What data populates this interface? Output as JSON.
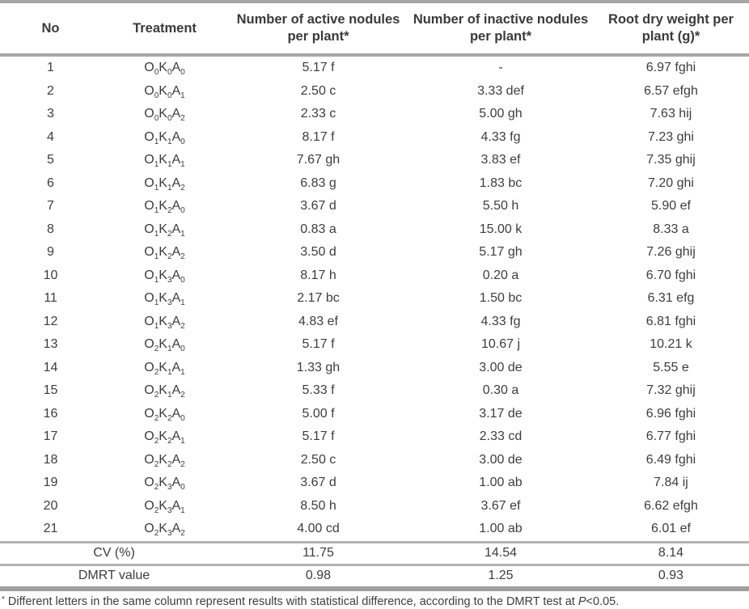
{
  "table": {
    "headers": [
      "No",
      "Treatment",
      "Number of active nodules\nper plant*",
      "Number of inactive nodules\nper plant*",
      "Root dry weight per\nplant (g)*"
    ],
    "rows": [
      {
        "no": "1",
        "treatment": "O0K0A0",
        "active": "5.17 f",
        "inactive": "-",
        "root": "6.97 fghi"
      },
      {
        "no": "2",
        "treatment": "O0K0A1",
        "active": "2.50 c",
        "inactive": "3.33 def",
        "root": "6.57 efgh"
      },
      {
        "no": "3",
        "treatment": "O0K0A2",
        "active": "2.33 c",
        "inactive": "5.00 gh",
        "root": "7.63 hij"
      },
      {
        "no": "4",
        "treatment": "O1K1A0",
        "active": "8.17 f",
        "inactive": "4.33 fg",
        "root": "7.23 ghi"
      },
      {
        "no": "5",
        "treatment": "O1K1A1",
        "active": "7.67 gh",
        "inactive": "3.83 ef",
        "root": "7.35 ghij"
      },
      {
        "no": "6",
        "treatment": "O1K1A2",
        "active": "6.83 g",
        "inactive": "1.83 bc",
        "root": "7.20 ghi"
      },
      {
        "no": "7",
        "treatment": "O1K2A0",
        "active": "3.67 d",
        "inactive": "5.50 h",
        "root": "5.90 ef"
      },
      {
        "no": "8",
        "treatment": "O1K2A1",
        "active": "0.83 a",
        "inactive": "15.00 k",
        "root": "8.33 a"
      },
      {
        "no": "9",
        "treatment": "O1K2A2",
        "active": "3.50 d",
        "inactive": "5.17 gh",
        "root": "7.26 ghij"
      },
      {
        "no": "10",
        "treatment": "O1K3A0",
        "active": "8.17 h",
        "inactive": "0.20 a",
        "root": "6.70 fghi"
      },
      {
        "no": "11",
        "treatment": "O1K3A1",
        "active": "2.17 bc",
        "inactive": "1.50 bc",
        "root": "6.31 efg"
      },
      {
        "no": "12",
        "treatment": "O1K3A2",
        "active": "4.83 ef",
        "inactive": "4.33 fg",
        "root": "6.81 fghi"
      },
      {
        "no": "13",
        "treatment": "O2K1A0",
        "active": "5.17 f",
        "inactive": "10.67 j",
        "root": "10.21 k"
      },
      {
        "no": "14",
        "treatment": "O2K1A1",
        "active": "1.33 gh",
        "inactive": "3.00 de",
        "root": "5.55 e"
      },
      {
        "no": "15",
        "treatment": "O2K1A2",
        "active": "5.33 f",
        "inactive": "0.30 a",
        "root": "7.32 ghij"
      },
      {
        "no": "16",
        "treatment": "O2K2A0",
        "active": "5.00 f",
        "inactive": "3.17 de",
        "root": "6.96 fghi"
      },
      {
        "no": "17",
        "treatment": "O2K2A1",
        "active": "5.17 f",
        "inactive": "2.33 cd",
        "root": "6.77 fghi"
      },
      {
        "no": "18",
        "treatment": "O2K2A2",
        "active": "2.50 c",
        "inactive": "3.00 de",
        "root": "6.49 fghi"
      },
      {
        "no": "19",
        "treatment": "O2K3A0",
        "active": "3.67 d",
        "inactive": "1.00 ab",
        "root": "7.84 ij"
      },
      {
        "no": "20",
        "treatment": "O2K3A1",
        "active": "8.50 h",
        "inactive": "3.67 ef",
        "root": "6.62 efgh"
      },
      {
        "no": "21",
        "treatment": "O2K3A2",
        "active": "4.00 cd",
        "inactive": "1.00 ab",
        "root": "6.01 ef"
      }
    ],
    "summary": [
      {
        "label": "CV (%)",
        "active": "11.75",
        "inactive": "14.54",
        "root": "8.14"
      },
      {
        "label": "DMRT value",
        "active": "0.98",
        "inactive": "1.25",
        "root": "0.93"
      }
    ]
  },
  "footnote": {
    "marker": "*",
    "text": " Different letters in the same column represent results with statistical difference, according to the DMRT test at ",
    "p_italic": "P",
    "suffix": "<0.05."
  },
  "colors": {
    "text": "#3d3d3d",
    "rule_heavy": "#a6a6a6",
    "rule_light": "#b3b3b3",
    "rule_bottom": "#a0a0a0",
    "background": "#ffffff"
  }
}
